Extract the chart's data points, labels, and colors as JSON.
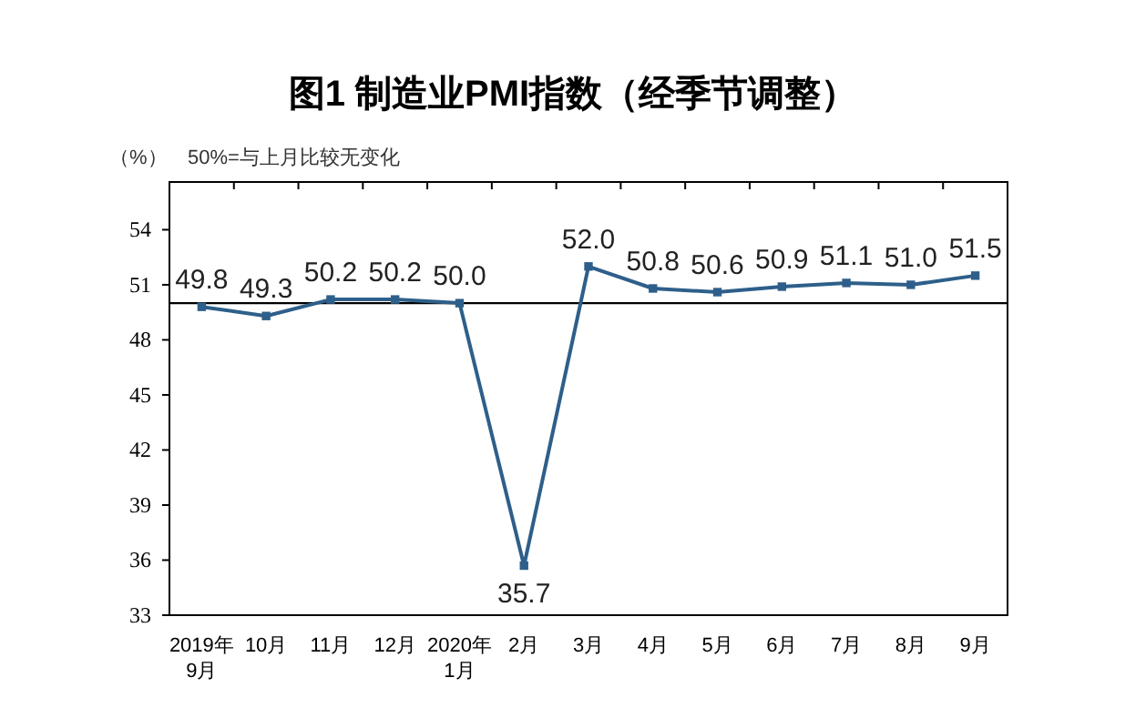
{
  "chart_data": {
    "type": "line",
    "title": "图1 制造业PMI指数（经季节调整）",
    "ylabel": "（%）",
    "annotations": [
      "50%=与上月比较无变化"
    ],
    "categories": [
      "2019年\n9月",
      "10月",
      "11月",
      "12月",
      "2020年\n1月",
      "2月",
      "3月",
      "4月",
      "5月",
      "6月",
      "7月",
      "8月",
      "9月"
    ],
    "series": [
      {
        "color": "#2e5f8a",
        "values": [
          49.8,
          49.3,
          50.2,
          50.2,
          50.0,
          35.7,
          52.0,
          50.8,
          50.6,
          50.9,
          51.1,
          51.0,
          51.5
        ],
        "value_labels": [
          "49.8",
          "49.3",
          "50.2",
          "50.2",
          "50.0",
          "35.7",
          "52.0",
          "50.8",
          "50.6",
          "50.9",
          "51.1",
          "51.0",
          "51.5"
        ]
      }
    ],
    "ylim": [
      33,
      56.6
    ],
    "yticks": [
      33,
      36,
      39,
      42,
      45,
      48,
      51,
      54
    ],
    "ref_lines": [
      {
        "axis": "y",
        "value": 50,
        "color": "#000000"
      }
    ],
    "marker": "square"
  }
}
